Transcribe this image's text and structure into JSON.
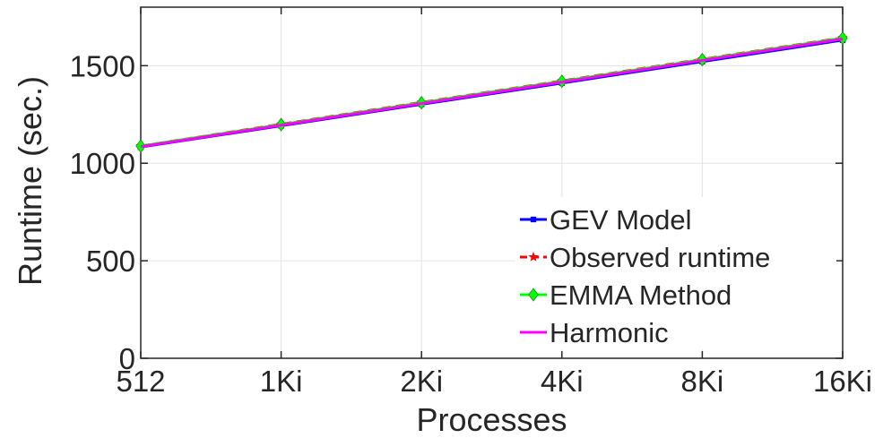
{
  "chart_data": {
    "type": "line",
    "title": "",
    "xlabel": "Processes",
    "ylabel": "Runtime (sec.)",
    "categories": [
      "512",
      "1Ki",
      "2Ki",
      "4Ki",
      "8Ki",
      "16Ki"
    ],
    "ylim": [
      0,
      1800
    ],
    "yticks": [
      0,
      500,
      1000,
      1500
    ],
    "ytick_labels": [
      "0",
      "500",
      "1000",
      "1500"
    ],
    "grid": true,
    "legend_position": "bottom-right",
    "series": [
      {
        "name": "GEV Model",
        "color": "#0000ff",
        "marker": "square",
        "line_style": "solid",
        "values": [
          1083,
          1192,
          1302,
          1411,
          1521,
          1631
        ]
      },
      {
        "name": "Observed runtime",
        "color": "#ff0000",
        "marker": "star",
        "line_style": "dashed",
        "values": [
          1088,
          1200,
          1312,
          1422,
          1533,
          1643
        ]
      },
      {
        "name": "EMMA Method",
        "color": "#00ff00",
        "marker": "diamond",
        "line_style": "solid",
        "values": [
          1088,
          1198,
          1310,
          1420,
          1531,
          1641
        ]
      },
      {
        "name": "Harmonic",
        "color": "#ff00ff",
        "marker": "none",
        "line_style": "solid",
        "values": [
          1085,
          1195,
          1306,
          1416,
          1527,
          1637
        ]
      }
    ]
  }
}
